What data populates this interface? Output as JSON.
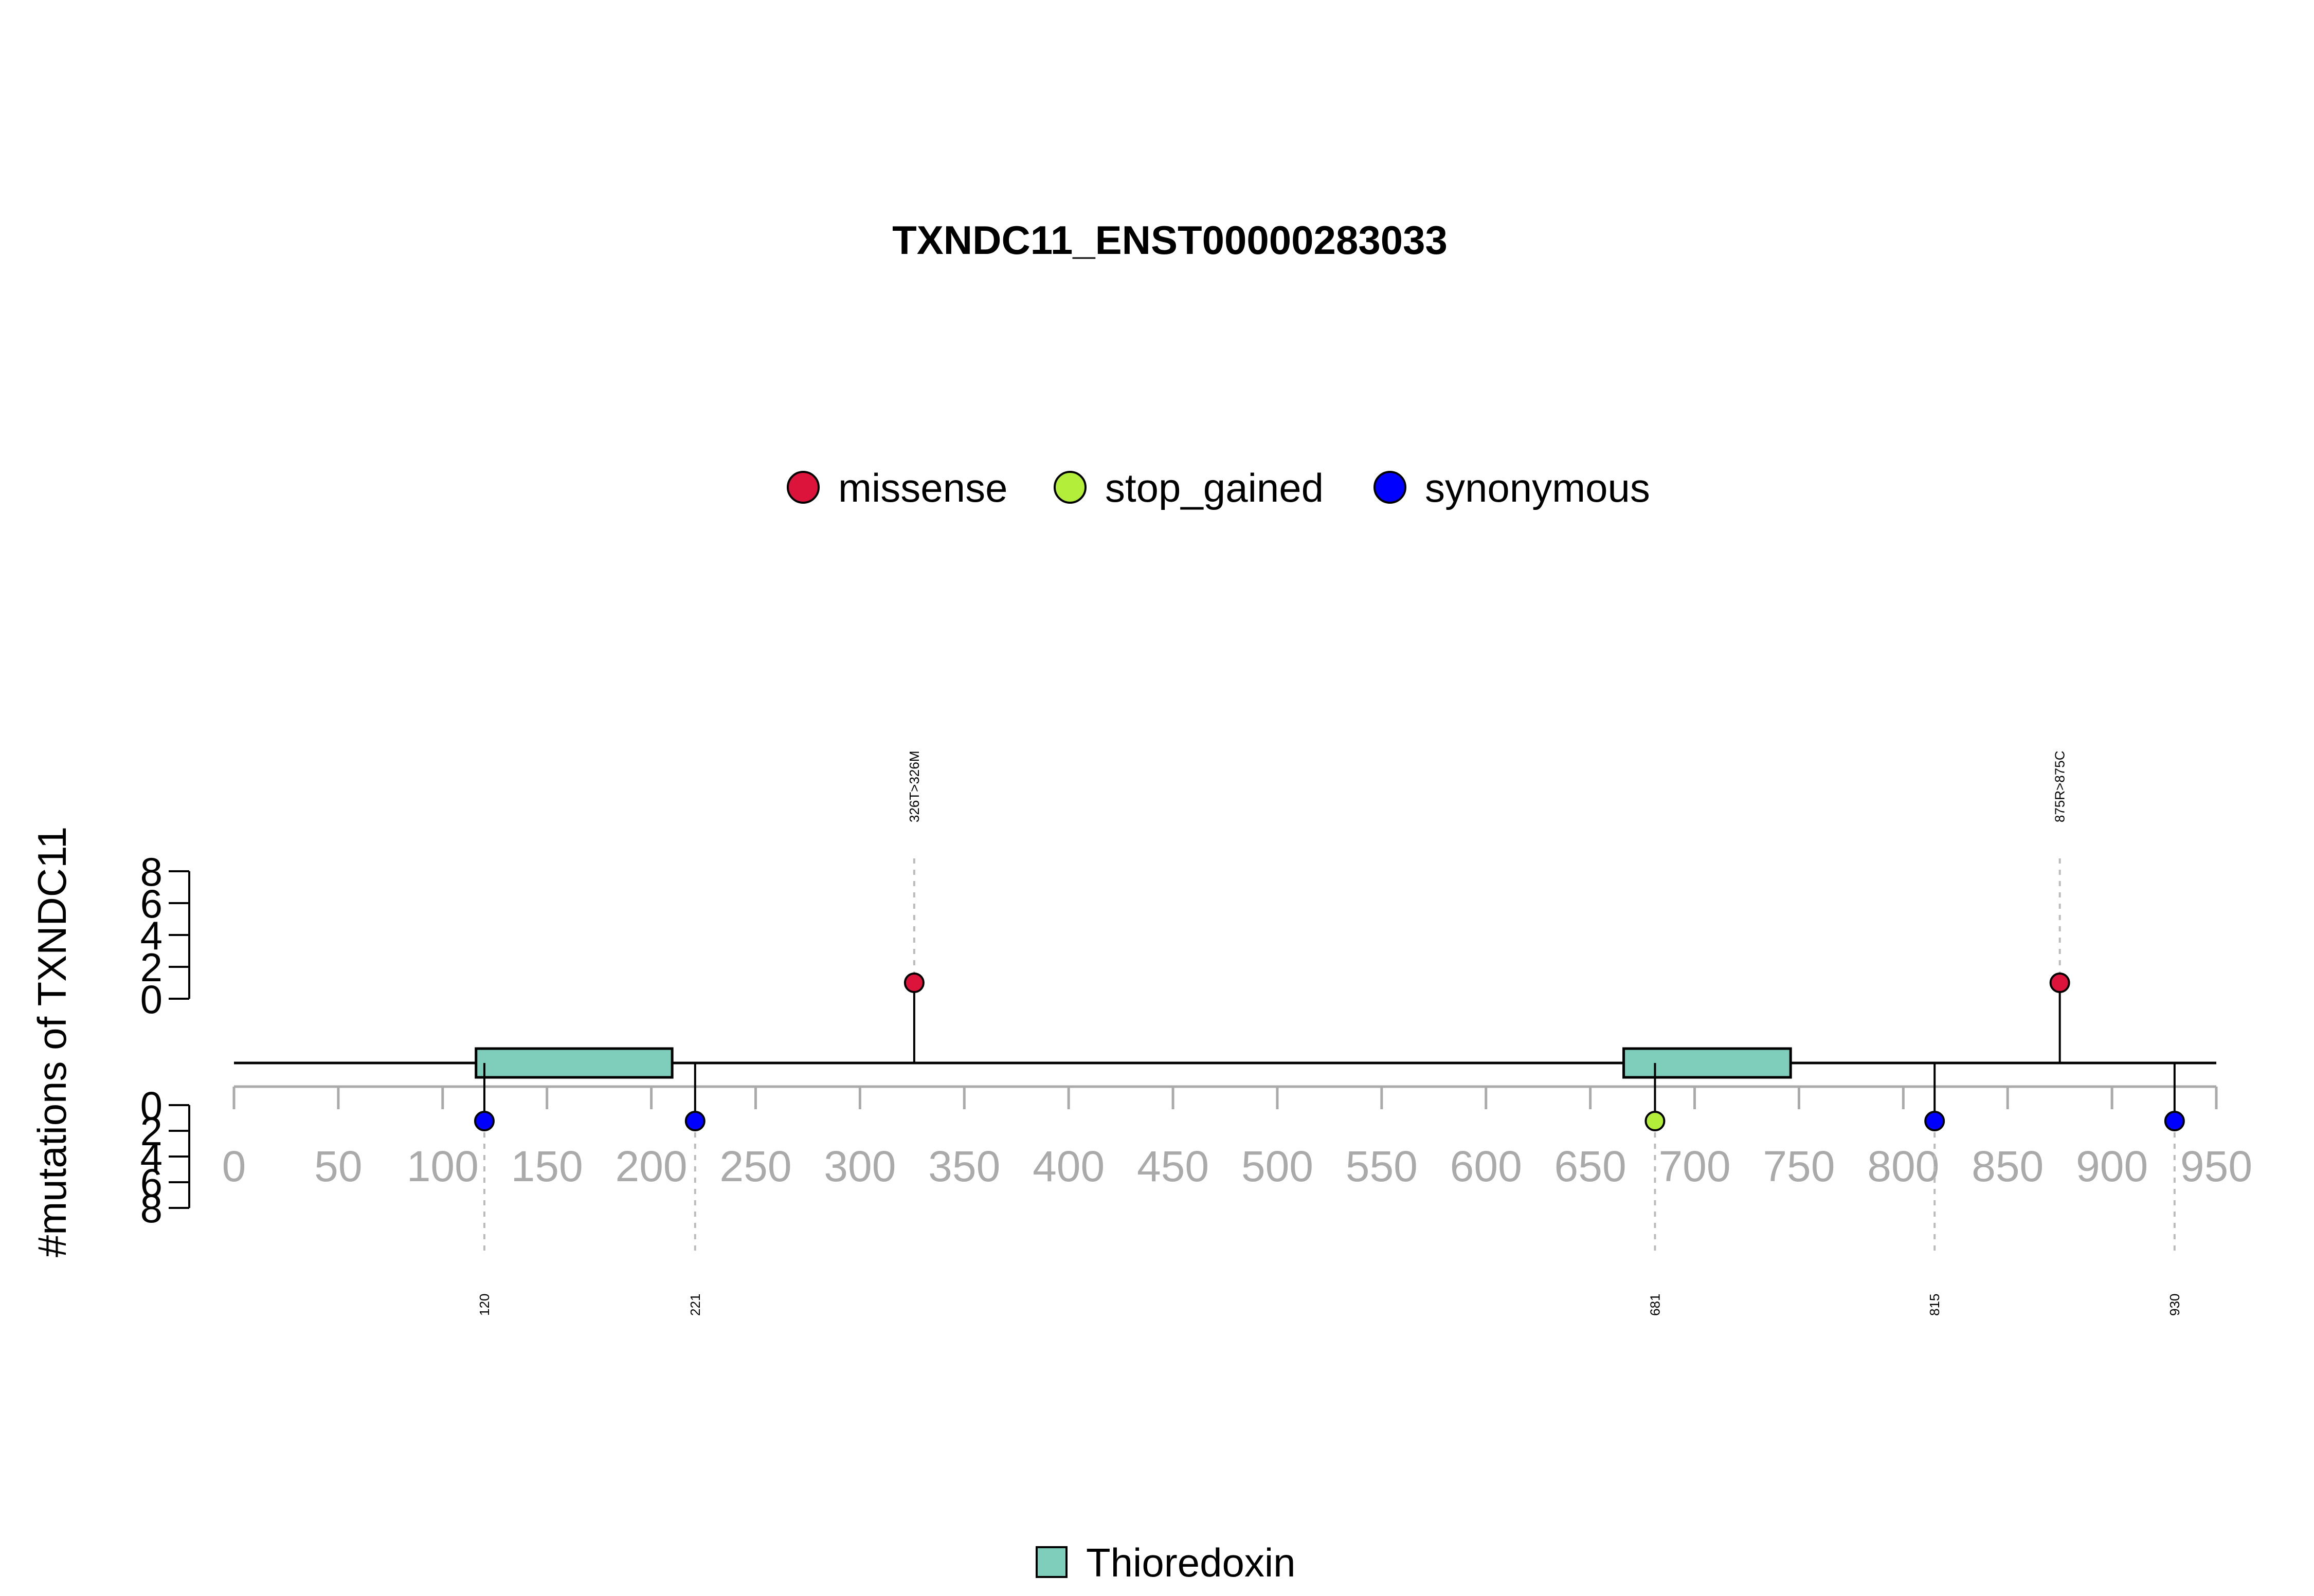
{
  "chart_data": {
    "type": "lollipop",
    "title": "TXNDC11_ENST00000283033",
    "ylabel": "#mutations of TXNDC11",
    "xlim": [
      0,
      950
    ],
    "x_ticks": [
      0,
      50,
      100,
      150,
      200,
      250,
      300,
      350,
      400,
      450,
      500,
      550,
      600,
      650,
      700,
      750,
      800,
      850,
      900,
      950
    ],
    "y_ticks": [
      0,
      2,
      4,
      6,
      8
    ],
    "legend": [
      {
        "label": "missense",
        "color": "#dc143c"
      },
      {
        "label": "stop_gained",
        "color": "#b3ee3a"
      },
      {
        "label": "synonymous",
        "color": "#0000ff"
      }
    ],
    "domains": [
      {
        "name": "Thioredoxin",
        "start": 116,
        "end": 210,
        "color": "#7fcdbb"
      },
      {
        "name": "Thioredoxin",
        "start": 666,
        "end": 746,
        "color": "#7fcdbb"
      }
    ],
    "domain_legend": {
      "label": "Thioredoxin",
      "color": "#7fcdbb"
    },
    "mutations_top": [
      {
        "position": 326,
        "count": 1,
        "type": "missense",
        "label": "326T>326M"
      },
      {
        "position": 875,
        "count": 1,
        "type": "missense",
        "label": "875R>875C"
      }
    ],
    "mutations_bottom": [
      {
        "position": 120,
        "count": 1,
        "type": "synonymous",
        "label": "120"
      },
      {
        "position": 221,
        "count": 1,
        "type": "synonymous",
        "label": "221"
      },
      {
        "position": 681,
        "count": 1,
        "type": "stop_gained",
        "label": "681"
      },
      {
        "position": 815,
        "count": 1,
        "type": "synonymous",
        "label": "815"
      },
      {
        "position": 930,
        "count": 1,
        "type": "synonymous",
        "label": "930"
      }
    ]
  }
}
